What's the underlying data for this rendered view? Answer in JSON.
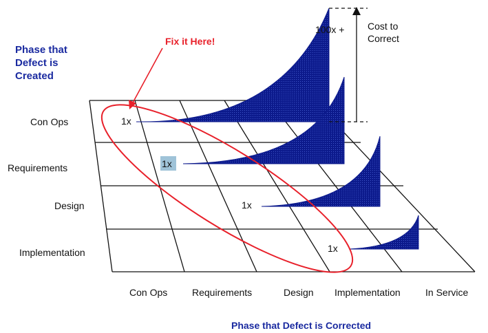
{
  "title_created": [
    "Phase that",
    "Defect is",
    "Created"
  ],
  "fix_label": "Fix it Here!",
  "cost_label": [
    "Cost to",
    "Correct"
  ],
  "cost_value": "100x +",
  "one_x": "1x",
  "row_phases": [
    "Con Ops",
    "Requirements",
    "Design",
    "Implementation"
  ],
  "col_phases": [
    "Con Ops",
    "Requirements",
    "Design",
    "Implementation",
    "In Service"
  ],
  "corrected_title": "Phase that Defect is Corrected",
  "colors": {
    "curve_fill": "#0c1a8c",
    "ellipse": "#e8202a",
    "accent_text": "#1a2aa0",
    "highlight": "#9fc3d8"
  }
}
